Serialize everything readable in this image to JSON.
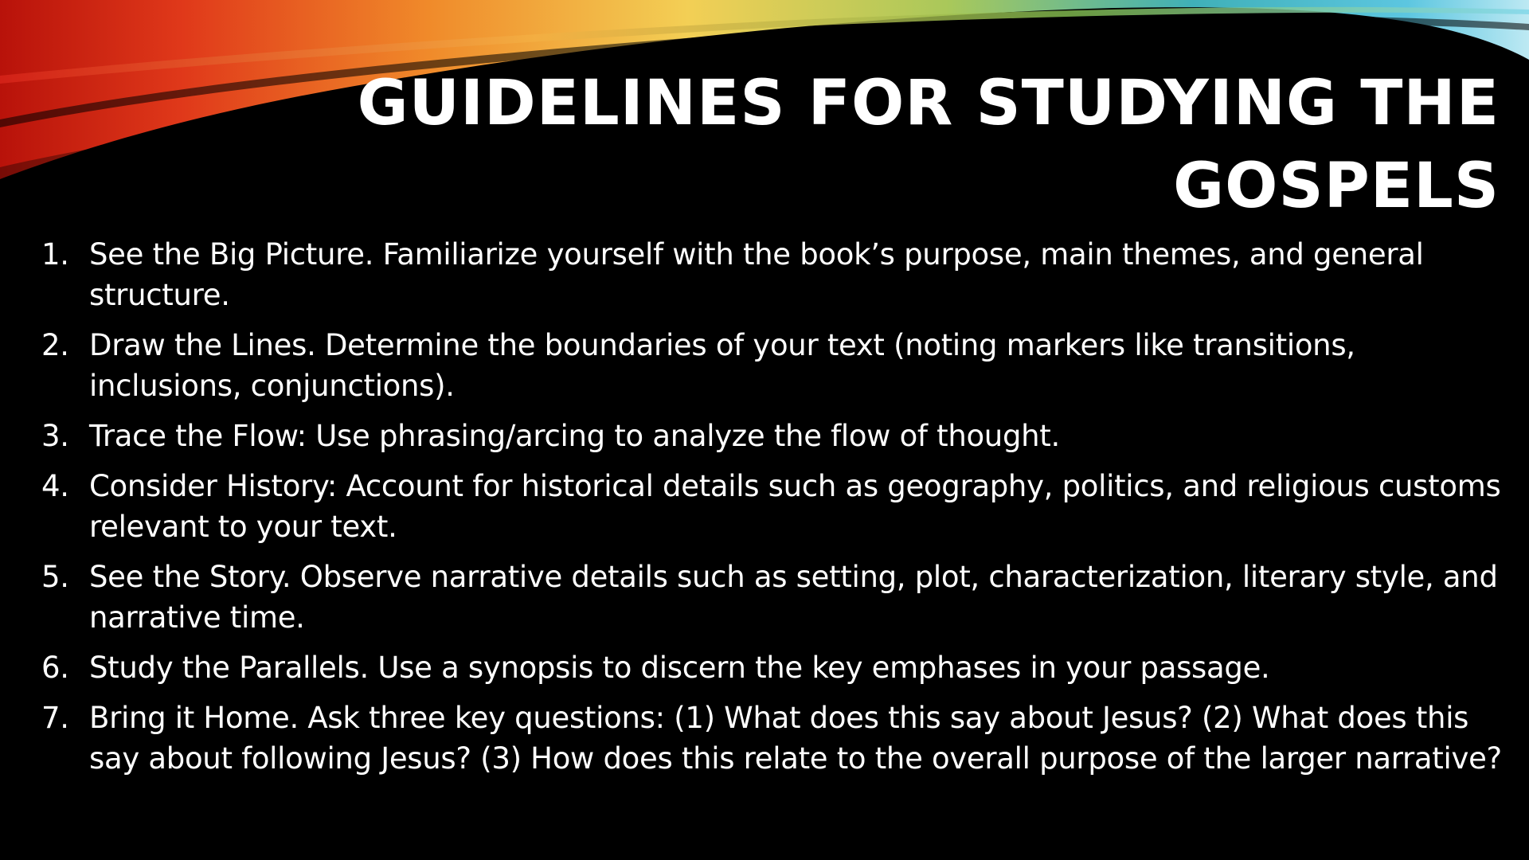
{
  "slide": {
    "title": "Guidelines for Studying the Gospels",
    "items": [
      {
        "number": "1.",
        "text": "See the Big Picture. Familiarize yourself with the book’s purpose, main themes, and general structure."
      },
      {
        "number": "2.",
        "text": "Draw the Lines. Determine the boundaries of your text (noting markers like transitions, inclusions, conjunctions)."
      },
      {
        "number": "3.",
        "text": "Trace the Flow: Use phrasing/arcing to analyze the flow of thought."
      },
      {
        "number": "4.",
        "text": "Consider History: Account for historical details such as geography, politics, and religious customs relevant to your text."
      },
      {
        "number": "5.",
        "text": "See the Story. Observe narrative details such as setting, plot, characterization, literary style, and narrative time."
      },
      {
        "number": "6.",
        "text": "Study the Parallels. Use a synopsis to discern the key emphases in your passage."
      },
      {
        "number": "7.",
        "text": "Bring it Home. Ask three key questions: (1) What does this say about Jesus? (2) What does this say about following Jesus? (3) How does this relate to the overall purpose of the larger narrative?"
      }
    ]
  },
  "theme": {
    "background": "#000000",
    "text_color": "#ffffff",
    "ribbon_colors": [
      "#c4160c",
      "#e8461a",
      "#f2a431",
      "#f4d55a",
      "#6fb84a",
      "#2aa9c9",
      "#7fd6e8"
    ]
  }
}
